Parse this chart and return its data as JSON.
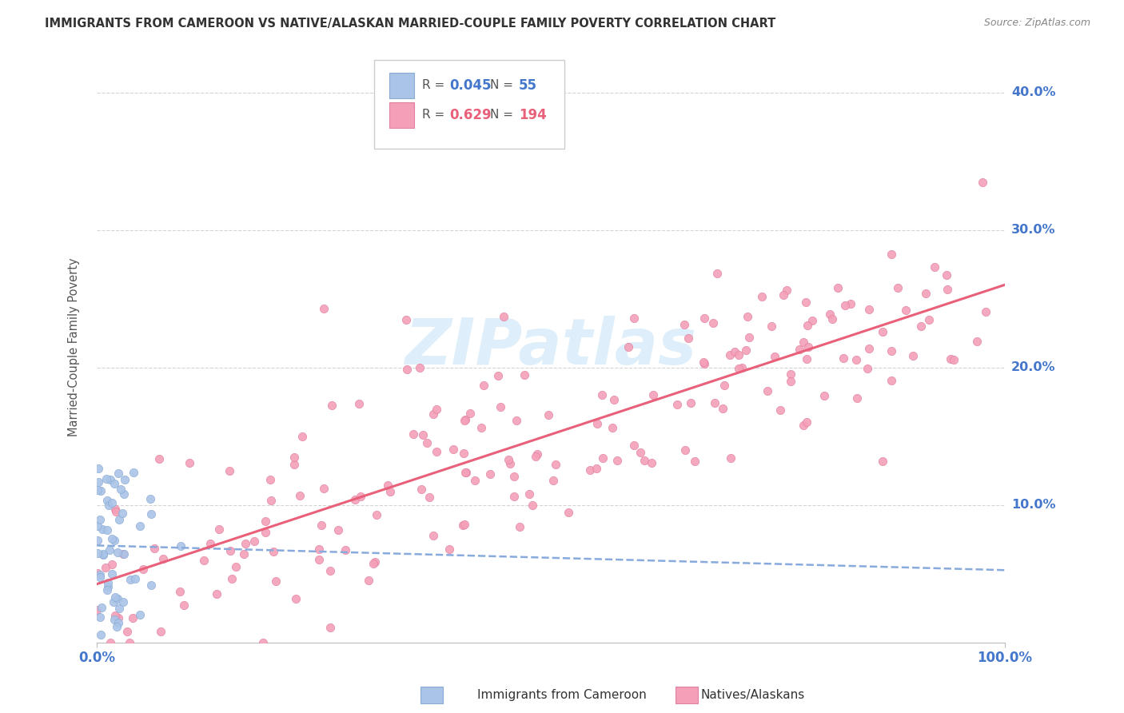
{
  "title": "IMMIGRANTS FROM CAMEROON VS NATIVE/ALASKAN MARRIED-COUPLE FAMILY POVERTY CORRELATION CHART",
  "source": "Source: ZipAtlas.com",
  "ylabel": "Married-Couple Family Poverty",
  "watermark": "ZIPatlas",
  "cam_color": "#aac4e8",
  "cam_edge": "#88aad4",
  "cam_line_color": "#88aadd",
  "nat_color": "#f4a0b8",
  "nat_edge": "#e080a0",
  "nat_line_color": "#e8607a",
  "axis_label_color": "#4477cc",
  "grid_color": "#d0d0d0",
  "title_color": "#333333",
  "source_color": "#888888",
  "background_color": "#ffffff",
  "watermark_color": "#d0e8f8",
  "xlim": [
    0.0,
    1.0
  ],
  "ylim": [
    0.0,
    0.43
  ],
  "cam_R": 0.045,
  "cam_N": 55,
  "nat_R": 0.629,
  "nat_N": 194,
  "seed": 12345
}
